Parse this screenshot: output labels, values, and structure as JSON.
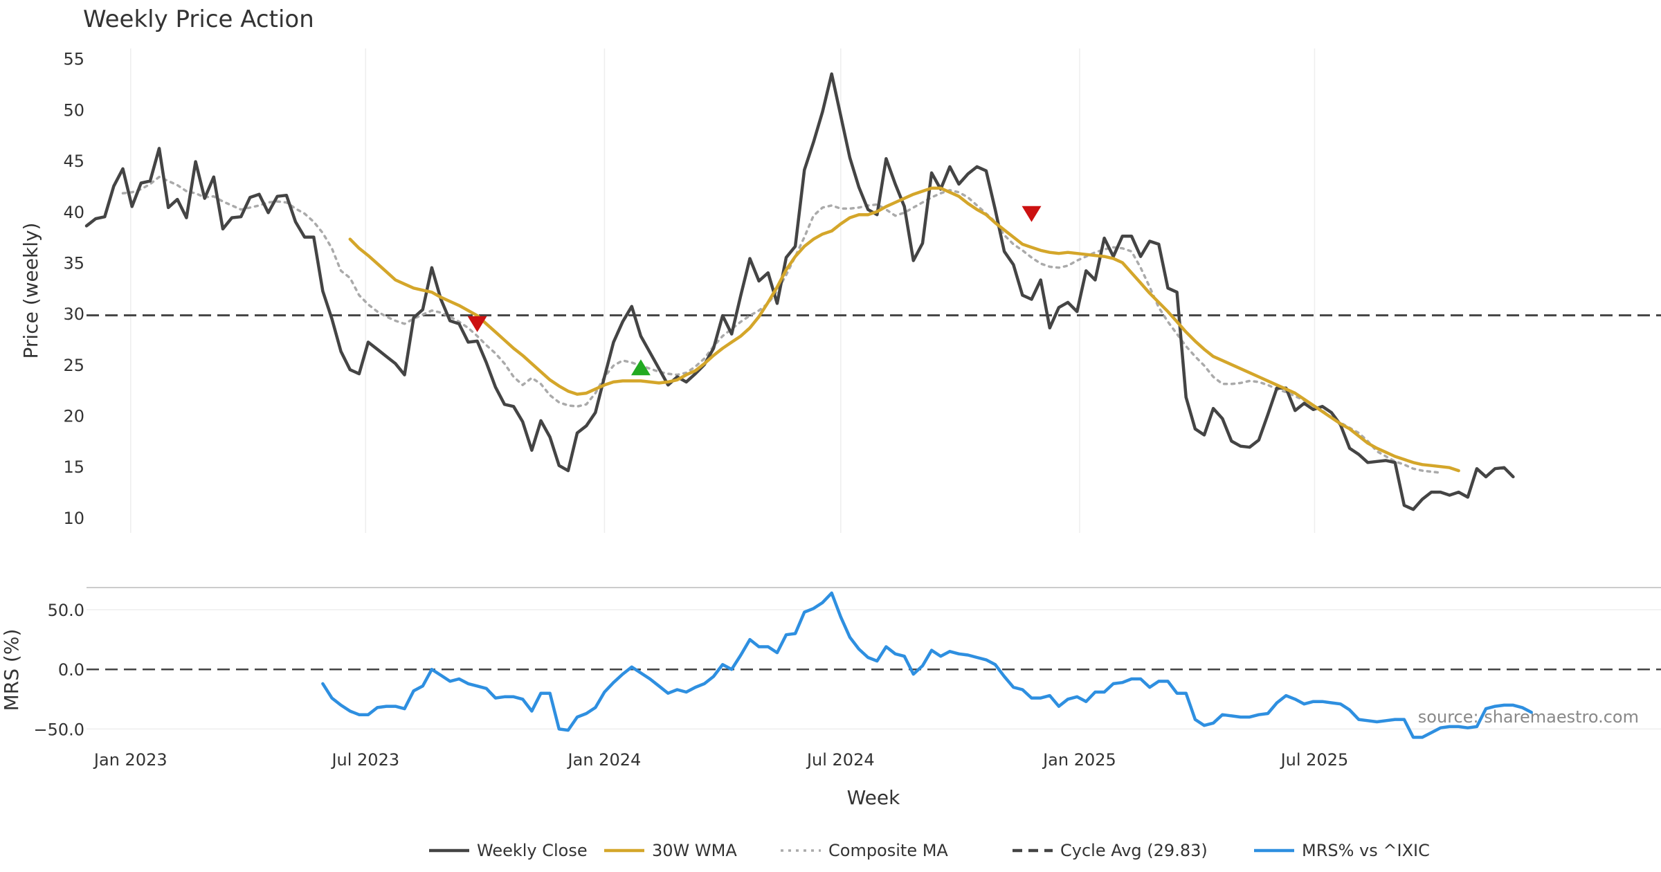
{
  "chart_data": {
    "type": "line",
    "title": "Weekly Price Action",
    "xlabel": "Week",
    "source_note": "source: sharemaestro.com",
    "x_start": "2022-11-28",
    "x_step_weeks": 1,
    "x_ticks": [
      "Jan 2023",
      "Jul 2023",
      "Jan 2024",
      "Jul 2024",
      "Jan 2025",
      "Jul 2025"
    ],
    "price_panel": {
      "ylabel": "Price (weekly)",
      "ylim": [
        8.5,
        56
      ],
      "yticks": [
        "10",
        "15",
        "20",
        "25",
        "30",
        "35",
        "40",
        "45",
        "50",
        "55"
      ],
      "cycle_avg": 29.83,
      "series": [
        {
          "name": "Weekly Close",
          "color": "#444444",
          "style": "solid",
          "start_index": 0,
          "values": [
            38.6,
            39.3,
            39.5,
            42.5,
            44.2,
            40.5,
            42.8,
            43.0,
            46.2,
            40.4,
            41.2,
            39.4,
            44.9,
            41.3,
            43.4,
            38.3,
            39.4,
            39.5,
            41.4,
            41.7,
            39.9,
            41.5,
            41.6,
            39.0,
            37.5,
            37.5,
            32.2,
            29.5,
            26.3,
            24.5,
            24.1,
            27.2,
            26.5,
            25.8,
            25.1,
            24.0,
            29.6,
            30.4,
            34.5,
            31.4,
            29.3,
            29.0,
            27.2,
            27.3,
            25.2,
            22.8,
            21.1,
            20.9,
            19.4,
            16.6,
            19.5,
            17.9,
            15.1,
            14.6,
            18.3,
            19.0,
            20.3,
            23.8,
            27.2,
            29.2,
            30.7,
            27.8,
            26.2,
            24.6,
            23.0,
            23.8,
            23.3,
            24.1,
            25.0,
            26.6,
            29.8,
            28.0,
            31.8,
            35.4,
            33.2,
            34.0,
            31.0,
            35.5,
            36.6,
            44.1,
            46.8,
            49.8,
            53.5,
            49.4,
            45.3,
            42.4,
            40.2,
            39.7,
            45.2,
            42.7,
            40.5,
            35.2,
            36.9,
            43.8,
            42.2,
            44.4,
            42.7,
            43.7,
            44.4,
            44.0,
            40.2,
            36.1,
            34.8,
            31.8,
            31.4,
            33.3,
            28.6,
            30.6,
            31.1,
            30.2,
            34.2,
            33.3,
            37.4,
            35.6,
            37.6,
            37.6,
            35.6,
            37.1,
            36.8,
            32.5,
            32.1,
            21.8,
            18.7,
            18.1,
            20.7,
            19.7,
            17.5,
            17.0,
            16.9,
            17.6,
            20.1,
            22.7,
            22.7,
            20.5,
            21.2,
            20.6,
            20.9,
            20.3,
            19.1,
            16.8,
            16.2,
            15.4,
            15.5,
            15.6,
            15.4,
            11.2,
            10.8,
            11.8,
            12.5,
            12.5,
            12.2,
            12.5,
            12.0,
            14.8,
            14.0,
            14.8,
            14.9,
            14.0
          ]
        },
        {
          "name": "30W WMA",
          "color": "#D4A62A",
          "style": "solid",
          "start_index": 29,
          "values": [
            37.3,
            36.4,
            35.7,
            34.9,
            34.1,
            33.3,
            32.9,
            32.5,
            32.3,
            32.1,
            31.6,
            31.2,
            30.8,
            30.3,
            29.8,
            29.0,
            28.2,
            27.4,
            26.6,
            25.9,
            25.1,
            24.3,
            23.5,
            22.9,
            22.4,
            22.1,
            22.2,
            22.6,
            23.0,
            23.3,
            23.4,
            23.4,
            23.4,
            23.3,
            23.2,
            23.3,
            23.5,
            24.0,
            24.4,
            25.1,
            25.9,
            26.6,
            27.2,
            27.8,
            28.6,
            29.7,
            31.1,
            32.6,
            34.3,
            35.6,
            36.6,
            37.3,
            37.8,
            38.1,
            38.8,
            39.4,
            39.7,
            39.7,
            40.0,
            40.5,
            40.9,
            41.3,
            41.7,
            42.0,
            42.3,
            42.3,
            41.9,
            41.5,
            40.8,
            40.2,
            39.7,
            38.9,
            38.2,
            37.5,
            36.8,
            36.5,
            36.2,
            36.0,
            35.9,
            36.0,
            35.9,
            35.8,
            35.7,
            35.6,
            35.4,
            35.0,
            34.0,
            33.0,
            32.0,
            31.1,
            30.2,
            29.2,
            28.2,
            27.3,
            26.5,
            25.8,
            25.4,
            25.0,
            24.6,
            24.2,
            23.8,
            23.4,
            23.0,
            22.6,
            22.2,
            21.6,
            21.0,
            20.4,
            19.8,
            19.2,
            18.7,
            18.0,
            17.3,
            16.8,
            16.4,
            16.0,
            15.7,
            15.4,
            15.2,
            15.1,
            15.0,
            14.9,
            14.6
          ]
        },
        {
          "name": "Composite MA",
          "color": "#aaaaaa",
          "style": "dotted",
          "start_index": 4,
          "values": [
            41.8,
            41.9,
            42.2,
            42.7,
            43.4,
            43.0,
            42.6,
            42.0,
            41.8,
            41.4,
            41.5,
            41.0,
            40.6,
            40.2,
            40.4,
            40.6,
            40.9,
            41.0,
            40.9,
            40.3,
            39.8,
            39.0,
            37.9,
            36.4,
            34.2,
            33.5,
            31.8,
            30.9,
            30.2,
            29.7,
            29.3,
            29.0,
            29.5,
            29.9,
            30.3,
            30.1,
            29.7,
            29.2,
            28.6,
            27.8,
            26.9,
            26.1,
            25.1,
            23.8,
            23.0,
            23.7,
            23.1,
            22.0,
            21.3,
            21.0,
            20.9,
            21.1,
            22.2,
            23.8,
            24.9,
            25.4,
            25.2,
            24.9,
            24.6,
            24.3,
            24.1,
            24.0,
            24.2,
            24.8,
            25.6,
            26.8,
            27.8,
            28.5,
            29.2,
            29.8,
            30.3,
            31.0,
            32.2,
            33.8,
            35.6,
            37.5,
            39.6,
            40.4,
            40.6,
            40.3,
            40.3,
            40.4,
            40.6,
            40.7,
            40.2,
            39.6,
            39.9,
            40.4,
            40.9,
            41.4,
            41.8,
            42.1,
            41.9,
            41.4,
            40.6,
            39.8,
            39.0,
            37.7,
            36.8,
            36.2,
            35.5,
            34.9,
            34.6,
            34.5,
            34.7,
            35.2,
            35.6,
            36.0,
            36.3,
            36.5,
            36.4,
            36.1,
            34.5,
            32.6,
            30.6,
            29.2,
            28.0,
            26.8,
            25.8,
            24.9,
            23.8,
            23.1,
            23.1,
            23.2,
            23.4,
            23.3,
            23.0,
            22.6,
            22.3,
            21.9,
            21.5,
            21.0,
            20.5,
            19.8,
            19.3,
            18.8,
            18.3,
            17.5,
            16.5,
            16.0,
            15.5,
            15.2,
            14.8,
            14.6,
            14.5,
            14.4
          ]
        }
      ],
      "signals": [
        {
          "type": "sell",
          "index": 43,
          "value": 29.0,
          "color": "#cc1111"
        },
        {
          "type": "buy",
          "index": 61,
          "value": 24.7,
          "color": "#22aa22"
        },
        {
          "type": "sell",
          "index": 104,
          "value": 39.8,
          "color": "#cc1111"
        }
      ]
    },
    "mrs_panel": {
      "ylabel": "MRS (%)",
      "ylim": [
        -55,
        68
      ],
      "yticks": [
        "50.0",
        "0.0",
        "−50.0"
      ],
      "series": [
        {
          "name": "MRS% vs ^IXIC",
          "color": "#2E8FE0",
          "style": "solid",
          "start_index": 26,
          "values": [
            -12,
            -24,
            -30,
            -35,
            -38,
            -38,
            -32,
            -31,
            -31,
            -33,
            -18,
            -14,
            0,
            -5,
            -10,
            -8,
            -12,
            -14,
            -16,
            -24,
            -23,
            -23,
            -25,
            -35,
            -20,
            -20,
            -50,
            -51,
            -40,
            -37,
            -32,
            -19,
            -11,
            -4,
            2,
            -3,
            -8,
            -14,
            -20,
            -17,
            -19,
            -15,
            -12,
            -6,
            4,
            0,
            12,
            25,
            19,
            19,
            14,
            29,
            30,
            48,
            51,
            56,
            64,
            44,
            27,
            17,
            10,
            7,
            19,
            13,
            11,
            -4,
            3,
            16,
            11,
            15,
            13,
            12,
            10,
            8,
            4,
            -6,
            -15,
            -17,
            -24,
            -24,
            -22,
            -31,
            -25,
            -23,
            -27,
            -19,
            -19,
            -12,
            -11,
            -8,
            -8,
            -15,
            -10,
            -10,
            -20,
            -20,
            -42,
            -47,
            -45,
            -38,
            -39,
            -40,
            -40,
            -38,
            -37,
            -28,
            -22,
            -25,
            -29,
            -27,
            -27,
            -28,
            -29,
            -34,
            -42,
            -43,
            -44,
            -43,
            -42,
            -42,
            -57,
            -57,
            -53,
            -49,
            -48,
            -48,
            -49,
            -48,
            -33,
            -31,
            -30,
            -30,
            -32,
            -36
          ]
        }
      ]
    },
    "legend": [
      {
        "label": "Weekly Close",
        "color": "#444444",
        "style": "solid"
      },
      {
        "label": "30W WMA",
        "color": "#D4A62A",
        "style": "solid"
      },
      {
        "label": "Composite MA",
        "color": "#aaaaaa",
        "style": "dotted"
      },
      {
        "label": "Cycle Avg (29.83)",
        "color": "#444444",
        "style": "dashed"
      },
      {
        "label": "MRS% vs ^IXIC",
        "color": "#2E8FE0",
        "style": "solid"
      }
    ]
  }
}
